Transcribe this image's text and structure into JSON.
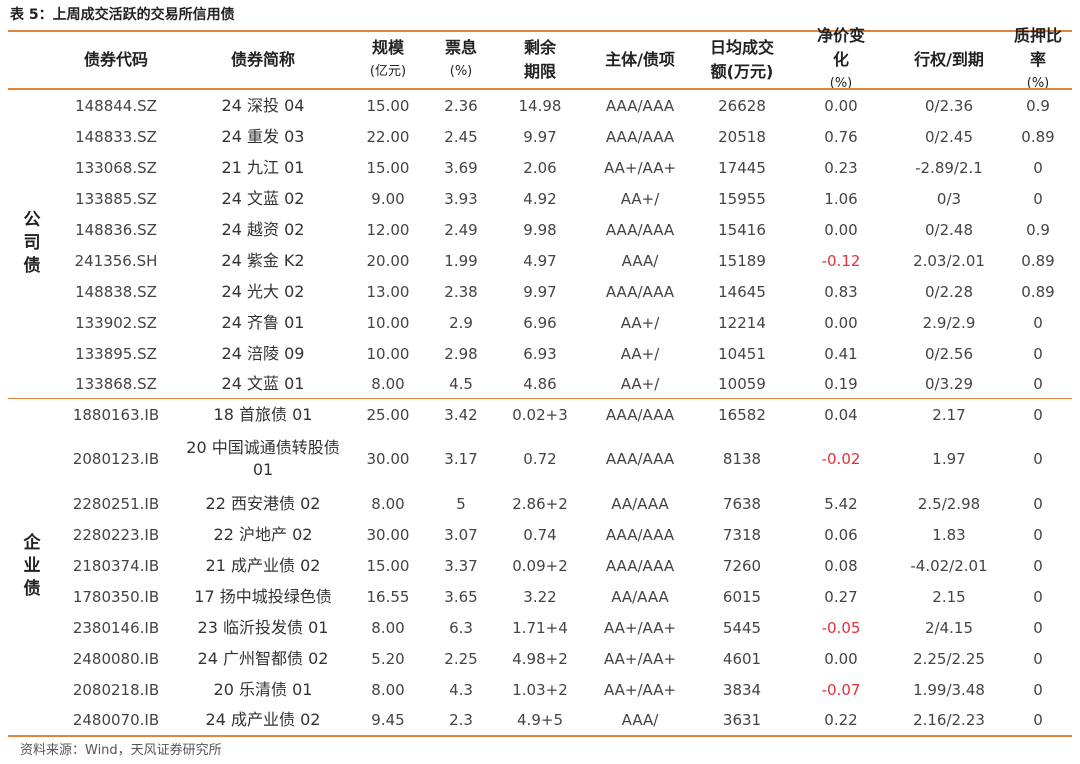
{
  "title": "表 5：上周成交活跃的交易所信用债",
  "headers": {
    "code": "债券代码",
    "name": "债券简称",
    "size": "规模",
    "size_unit": "(亿元)",
    "coupon": "票息",
    "coupon_unit": "(%)",
    "term": "剩余\n期限",
    "rating": "主体/债项",
    "volume": "日均成交\n额(万元)",
    "price_change": "净价变\n化",
    "price_change_unit": "(%)",
    "exercise": "行权/到期",
    "pledge": "质押比\n率",
    "pledge_unit": "(%)"
  },
  "groups": [
    {
      "label": "公司债",
      "rows": [
        {
          "code": "148844.SZ",
          "name": "24 深投 04",
          "size": "15.00",
          "coupon": "2.36",
          "term": "14.98",
          "rating": "AAA/AAA",
          "volume": "26628",
          "change": "0.00",
          "exercise": "0/2.36",
          "pledge": "0.9"
        },
        {
          "code": "148833.SZ",
          "name": "24 重发 03",
          "size": "22.00",
          "coupon": "2.45",
          "term": "9.97",
          "rating": "AAA/AAA",
          "volume": "20518",
          "change": "0.76",
          "exercise": "0/2.45",
          "pledge": "0.89"
        },
        {
          "code": "133068.SZ",
          "name": "21 九江 01",
          "size": "15.00",
          "coupon": "3.69",
          "term": "2.06",
          "rating": "AA+/AA+",
          "volume": "17445",
          "change": "0.23",
          "exercise": "-2.89/2.1",
          "pledge": "0"
        },
        {
          "code": "133885.SZ",
          "name": "24 文蓝 02",
          "size": "9.00",
          "coupon": "3.93",
          "term": "4.92",
          "rating": "AA+/",
          "volume": "15955",
          "change": "1.06",
          "exercise": "0/3",
          "pledge": "0"
        },
        {
          "code": "148836.SZ",
          "name": "24 越资 02",
          "size": "12.00",
          "coupon": "2.49",
          "term": "9.98",
          "rating": "AAA/AAA",
          "volume": "15416",
          "change": "0.00",
          "exercise": "0/2.48",
          "pledge": "0.9"
        },
        {
          "code": "241356.SH",
          "name": "24 紫金 K2",
          "size": "20.00",
          "coupon": "1.99",
          "term": "4.97",
          "rating": "AAA/",
          "volume": "15189",
          "change": "-0.12",
          "exercise": "2.03/2.01",
          "pledge": "0.89"
        },
        {
          "code": "148838.SZ",
          "name": "24 光大 02",
          "size": "13.00",
          "coupon": "2.38",
          "term": "9.97",
          "rating": "AAA/AAA",
          "volume": "14645",
          "change": "0.83",
          "exercise": "0/2.28",
          "pledge": "0.89"
        },
        {
          "code": "133902.SZ",
          "name": "24 齐鲁 01",
          "size": "10.00",
          "coupon": "2.9",
          "term": "6.96",
          "rating": "AA+/",
          "volume": "12214",
          "change": "0.00",
          "exercise": "2.9/2.9",
          "pledge": "0"
        },
        {
          "code": "133895.SZ",
          "name": "24 涪陵 09",
          "size": "10.00",
          "coupon": "2.98",
          "term": "6.93",
          "rating": "AA+/",
          "volume": "10451",
          "change": "0.41",
          "exercise": "0/2.56",
          "pledge": "0"
        },
        {
          "code": "133868.SZ",
          "name": "24 文蓝 01",
          "size": "8.00",
          "coupon": "4.5",
          "term": "4.86",
          "rating": "AA+/",
          "volume": "10059",
          "change": "0.19",
          "exercise": "0/3.29",
          "pledge": "0"
        }
      ]
    },
    {
      "label": "企业债",
      "rows": [
        {
          "code": "1880163.IB",
          "name": "18 首旅债 01",
          "size": "25.00",
          "coupon": "3.42",
          "term": "0.02+3",
          "rating": "AAA/AAA",
          "volume": "16582",
          "change": "0.04",
          "exercise": "2.17",
          "pledge": "0"
        },
        {
          "code": "2080123.IB",
          "name": "20 中国诚通债转股债 01",
          "size": "30.00",
          "coupon": "3.17",
          "term": "0.72",
          "rating": "AAA/AAA",
          "volume": "8138",
          "change": "-0.02",
          "exercise": "1.97",
          "pledge": "0"
        },
        {
          "code": "2280251.IB",
          "name": "22 西安港债 02",
          "size": "8.00",
          "coupon": "5",
          "term": "2.86+2",
          "rating": "AA/AAA",
          "volume": "7638",
          "change": "5.42",
          "exercise": "2.5/2.98",
          "pledge": "0"
        },
        {
          "code": "2280223.IB",
          "name": "22 沪地产 02",
          "size": "30.00",
          "coupon": "3.07",
          "term": "0.74",
          "rating": "AAA/AAA",
          "volume": "7318",
          "change": "0.06",
          "exercise": "1.83",
          "pledge": "0"
        },
        {
          "code": "2180374.IB",
          "name": "21 成产业债 02",
          "size": "15.00",
          "coupon": "3.37",
          "term": "0.09+2",
          "rating": "AAA/AAA",
          "volume": "7260",
          "change": "0.08",
          "exercise": "-4.02/2.01",
          "pledge": "0"
        },
        {
          "code": "1780350.IB",
          "name": "17 扬中城投绿色债",
          "size": "16.55",
          "coupon": "3.65",
          "term": "3.22",
          "rating": "AA/AAA",
          "volume": "6015",
          "change": "0.27",
          "exercise": "2.15",
          "pledge": "0"
        },
        {
          "code": "2380146.IB",
          "name": "23 临沂投发债 01",
          "size": "8.00",
          "coupon": "6.3",
          "term": "1.71+4",
          "rating": "AA+/AA+",
          "volume": "5445",
          "change": "-0.05",
          "exercise": "2/4.15",
          "pledge": "0"
        },
        {
          "code": "2480080.IB",
          "name": "24 广州智都债 02",
          "size": "5.20",
          "coupon": "2.25",
          "term": "4.98+2",
          "rating": "AA+/AA+",
          "volume": "4601",
          "change": "0.00",
          "exercise": "2.25/2.25",
          "pledge": "0"
        },
        {
          "code": "2080218.IB",
          "name": "20 乐清债 01",
          "size": "8.00",
          "coupon": "4.3",
          "term": "1.03+2",
          "rating": "AA+/AA+",
          "volume": "3834",
          "change": "-0.07",
          "exercise": "1.99/3.48",
          "pledge": "0"
        },
        {
          "code": "2480070.IB",
          "name": "24 成产业债 02",
          "size": "9.45",
          "coupon": "2.3",
          "term": "4.9+5",
          "rating": "AAA/",
          "volume": "3631",
          "change": "0.22",
          "exercise": "2.16/2.23",
          "pledge": "0"
        }
      ]
    }
  ],
  "source": "资料来源：Wind，天风证券研究所",
  "colors": {
    "rule": "#E2833C",
    "negative": "#E0303A"
  }
}
